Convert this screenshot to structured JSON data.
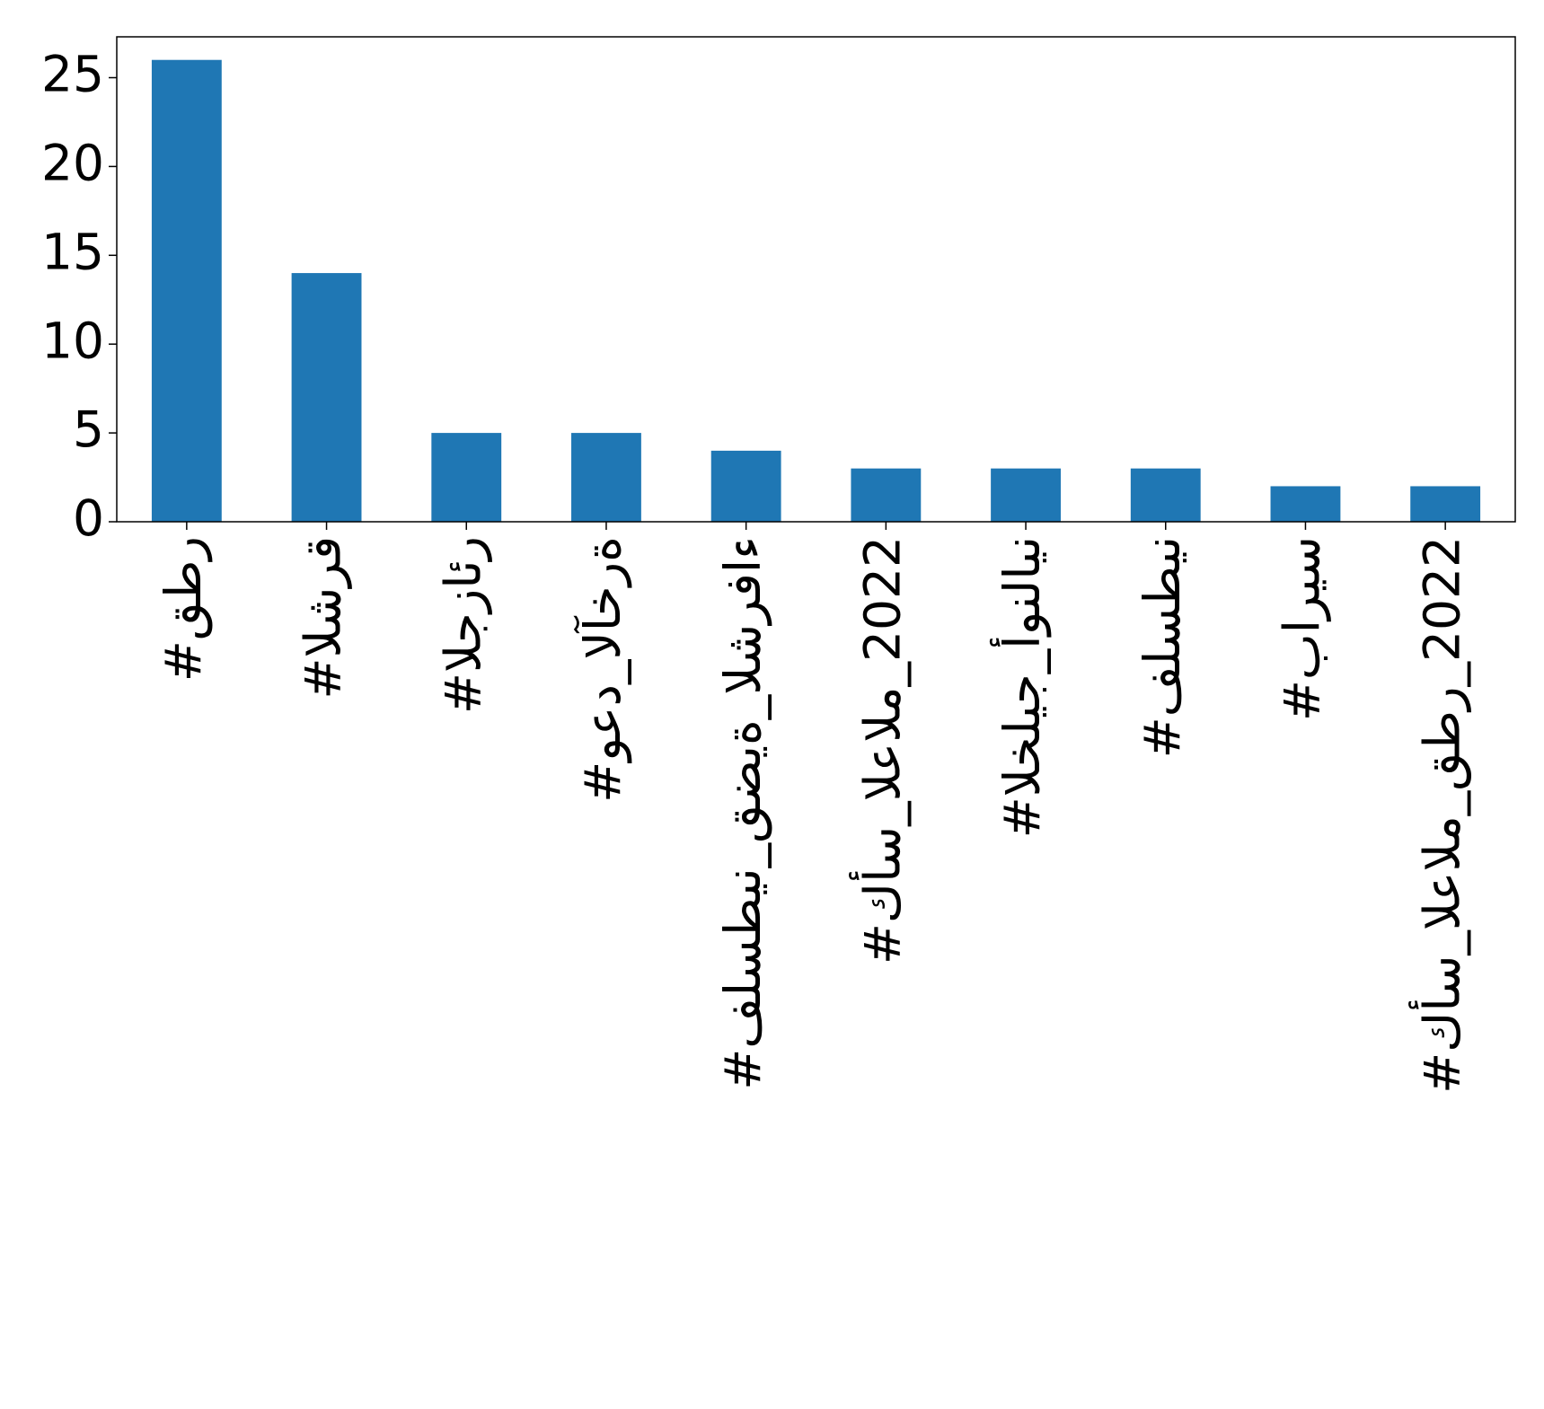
{
  "chart_data": {
    "type": "bar",
    "categories": [
      "#قطر",
      "#الشرق",
      "#الجزائر",
      "#وعد_الآخرة",
      "#فلسطين_قضية_الشرفاء",
      "#كأس_العالم_2022",
      "#الخليج_أونلاين",
      "#فلسطين",
      "#باريس",
      "#كأس_العالم_قطر_2022"
    ],
    "values": [
      26,
      14,
      5,
      5,
      4,
      3,
      3,
      3,
      2,
      2
    ],
    "color": "#1f77b4",
    "ylim": [
      0,
      27.3
    ],
    "yticks": [
      0,
      5,
      10,
      15,
      20,
      25
    ],
    "grid": false
  }
}
